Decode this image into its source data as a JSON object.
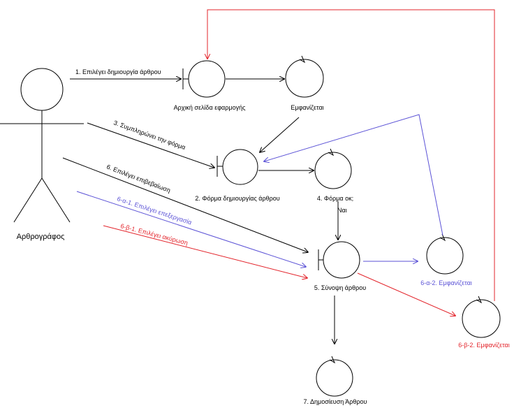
{
  "colors": {
    "line": "#000000",
    "alt_blue": "#5b52d6",
    "alt_red": "#e3242b",
    "background": "#ffffff"
  },
  "actor": {
    "name": "Αρθρογράφος"
  },
  "nodes": {
    "home_page": "Αρχική σελίδα εφαρμογής",
    "displayed_1": "Εμφανίζεται",
    "create_form": "2. Φόρμα δημιουργίας άρθρου",
    "form_ok": "4. Φόρμα οκ;",
    "summary": "5. Σύνοψη άρθρου",
    "displayed_6a2": "6-α-2. Εμφανίζεται",
    "displayed_6b2": "6-β-2. Εμφανίζεται",
    "publish": "7. Δημοσίευση Άρθρου"
  },
  "messages": {
    "m1": "1. Επιλέγει δημιουργία άρθρου",
    "m3": "3. Συμπληρώνει την φόρμα",
    "m6": "6. Επιλέγει επιβεβαίωση",
    "m6a1": "6-α-1. Επιλέγει επεξεργασία",
    "m6b1": "6-β-1. Επιλέγει ακύρωση",
    "yes": "Ναι"
  }
}
